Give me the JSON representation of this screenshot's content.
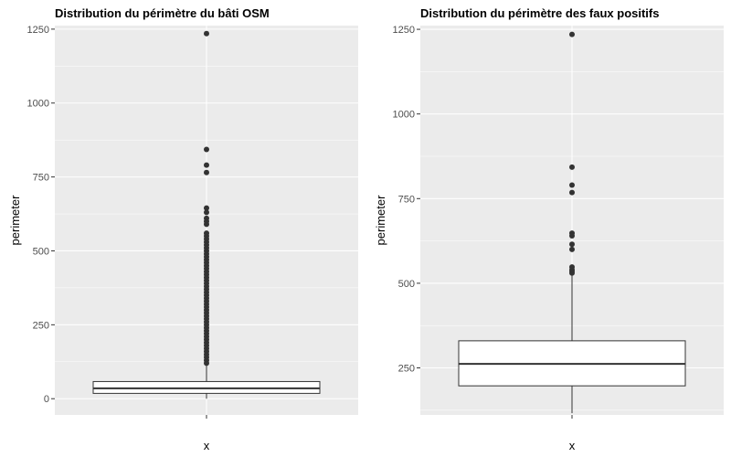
{
  "chart_data": [
    {
      "type": "boxplot",
      "title": "Distribution du périmètre du bâti OSM",
      "xlabel": "x",
      "ylabel": "perimeter",
      "ylim": [
        -55,
        1262
      ],
      "yticks": [
        0,
        250,
        500,
        750,
        1000,
        1250
      ],
      "grid": true,
      "box": {
        "min": 0,
        "q1": 18,
        "median": 35,
        "q3": 58,
        "max": 118
      },
      "outliers": [
        1235,
        843,
        790,
        765,
        645,
        630,
        610,
        600,
        590,
        560,
        550,
        540,
        530,
        520,
        510,
        500,
        490,
        480,
        470,
        460,
        450,
        440,
        430,
        420,
        410,
        400,
        390,
        380,
        370,
        360,
        350,
        340,
        330,
        320,
        310,
        300,
        290,
        280,
        270,
        260,
        250,
        240,
        230,
        220,
        210,
        200,
        190,
        180,
        170,
        160,
        150,
        140,
        130,
        120
      ]
    },
    {
      "type": "boxplot",
      "title": "Distribution du périmètre des faux positifs",
      "xlabel": "x",
      "ylabel": "perimeter",
      "ylim": [
        111,
        1261
      ],
      "yticks": [
        250,
        500,
        750,
        1000,
        1250
      ],
      "grid": true,
      "box": {
        "min": 116,
        "q1": 197,
        "median": 262,
        "q3": 330,
        "max": 528
      },
      "outliers": [
        1235,
        843,
        790,
        768,
        648,
        640,
        615,
        600,
        548,
        540,
        535,
        530
      ]
    }
  ]
}
